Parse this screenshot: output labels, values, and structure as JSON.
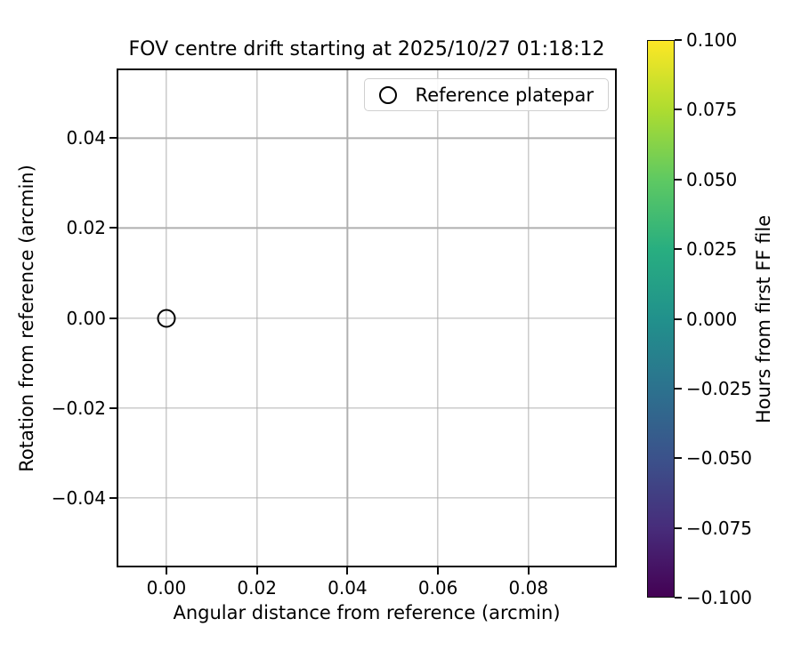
{
  "chart_data": {
    "type": "scatter",
    "title": "FOV centre drift starting at 2025/10/27 01:18:12",
    "xlabel": "Angular distance from reference (arcmin)",
    "ylabel": "Rotation from reference (arcmin)",
    "xlim": [
      -0.011,
      0.0995
    ],
    "ylim": [
      -0.0555,
      0.0555
    ],
    "x_ticks": [
      0.0,
      0.02,
      0.04,
      0.06,
      0.08
    ],
    "x_tick_labels": [
      "0.00",
      "0.02",
      "0.04",
      "0.06",
      "0.08"
    ],
    "y_ticks": [
      0.04,
      0.02,
      0.0,
      -0.02,
      -0.04
    ],
    "y_tick_labels": [
      "0.04",
      "0.02",
      "0.00",
      "−0.02",
      "−0.04"
    ],
    "grid": true,
    "grid_color": "#b0b0b0",
    "spine_color": "#000000",
    "background": "#ffffff",
    "legend": {
      "position": "upper right",
      "entries": [
        {
          "label": "Reference platepar",
          "marker": "open-circle",
          "color": "#000000"
        }
      ]
    },
    "series": [
      {
        "name": "Reference platepar",
        "marker": "open-circle",
        "color": "#000000",
        "points": [
          {
            "x": 0.0,
            "y": 0.0
          }
        ]
      }
    ],
    "colorbar": {
      "label": "Hours from first FF file",
      "colormap": "viridis",
      "range": [
        -0.1,
        0.1
      ],
      "tick_values": [
        0.1,
        0.075,
        0.05,
        0.025,
        0.0,
        -0.025,
        -0.05,
        -0.075,
        -0.1
      ],
      "tick_labels": [
        "0.100",
        "0.075",
        "0.050",
        "0.025",
        "0.000",
        "−0.025",
        "−0.050",
        "−0.075",
        "−0.100"
      ],
      "gradient_stops_top_to_bottom": [
        "#fde725",
        "#addc30",
        "#5ec962",
        "#28ae80",
        "#21918c",
        "#2c728e",
        "#3b528b",
        "#472d7b",
        "#440154"
      ]
    }
  }
}
